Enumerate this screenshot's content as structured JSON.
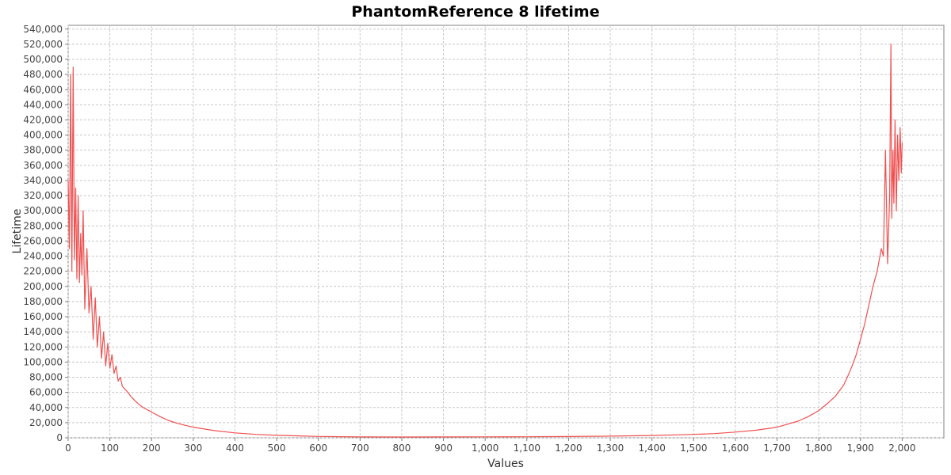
{
  "chart_data": {
    "type": "line",
    "title": "PhantomReference 8 lifetime",
    "xlabel": "Values",
    "ylabel": "Lifetime",
    "xlim": [
      0,
      2100
    ],
    "ylim": [
      0,
      545000
    ],
    "x_ticks": [
      0,
      100,
      200,
      300,
      400,
      500,
      600,
      700,
      800,
      900,
      1000,
      1100,
      1200,
      1300,
      1400,
      1500,
      1600,
      1700,
      1800,
      1900,
      2000
    ],
    "x_tick_labels": [
      "0",
      "100",
      "200",
      "300",
      "400",
      "500",
      "600",
      "700",
      "800",
      "900",
      "1,000",
      "1,100",
      "1,200",
      "1,300",
      "1,400",
      "1,500",
      "1,600",
      "1,700",
      "1,800",
      "1,900",
      "2,000"
    ],
    "y_ticks": [
      0,
      20000,
      40000,
      60000,
      80000,
      100000,
      120000,
      140000,
      160000,
      180000,
      200000,
      220000,
      240000,
      260000,
      280000,
      300000,
      320000,
      340000,
      360000,
      380000,
      400000,
      420000,
      440000,
      460000,
      480000,
      500000,
      520000,
      540000
    ],
    "y_tick_labels": [
      "0",
      "20,000",
      "40,000",
      "60,000",
      "80,000",
      "100,000",
      "120,000",
      "140,000",
      "160,000",
      "180,000",
      "200,000",
      "220,000",
      "240,000",
      "260,000",
      "280,000",
      "300,000",
      "320,000",
      "340,000",
      "360,000",
      "380,000",
      "400,000",
      "420,000",
      "440,000",
      "460,000",
      "480,000",
      "500,000",
      "520,000",
      "540,000"
    ],
    "grid": true,
    "legend": "none",
    "series": [
      {
        "color": "#f05050",
        "x": [
          0,
          3,
          6,
          9,
          12,
          15,
          18,
          21,
          24,
          27,
          30,
          33,
          36,
          40,
          45,
          50,
          55,
          60,
          65,
          70,
          75,
          80,
          85,
          90,
          95,
          100,
          105,
          110,
          115,
          120,
          125,
          130,
          140,
          150,
          160,
          170,
          180,
          190,
          200,
          220,
          240,
          260,
          280,
          300,
          350,
          400,
          450,
          500,
          600,
          700,
          800,
          900,
          1000,
          1100,
          1200,
          1300,
          1400,
          1500,
          1550,
          1600,
          1650,
          1700,
          1725,
          1750,
          1775,
          1800,
          1820,
          1840,
          1860,
          1870,
          1880,
          1890,
          1900,
          1910,
          1920,
          1930,
          1940,
          1950,
          1955,
          1960,
          1965,
          1970,
          1973,
          1975,
          1978,
          1980,
          1983,
          1986,
          1989,
          1992,
          1995,
          1998,
          2000
        ],
        "y": [
          340000,
          250000,
          480000,
          220000,
          490000,
          235000,
          330000,
          210000,
          320000,
          205000,
          270000,
          215000,
          300000,
          170000,
          250000,
          165000,
          200000,
          130000,
          185000,
          120000,
          160000,
          105000,
          140000,
          95000,
          125000,
          92000,
          110000,
          85000,
          95000,
          75000,
          80000,
          68000,
          62000,
          55000,
          49000,
          44000,
          40000,
          37000,
          34000,
          28000,
          23000,
          19500,
          16500,
          14000,
          9500,
          6500,
          4500,
          3200,
          1800,
          1200,
          1000,
          1100,
          1300,
          1400,
          1700,
          2200,
          3000,
          4500,
          5500,
          7500,
          10000,
          14000,
          18000,
          22000,
          28000,
          36000,
          45000,
          55000,
          70000,
          82000,
          95000,
          110000,
          130000,
          150000,
          175000,
          200000,
          220000,
          250000,
          240000,
          380000,
          230000,
          320000,
          520000,
          290000,
          380000,
          310000,
          420000,
          300000,
          400000,
          340000,
          410000,
          350000,
          390000
        ]
      }
    ]
  }
}
